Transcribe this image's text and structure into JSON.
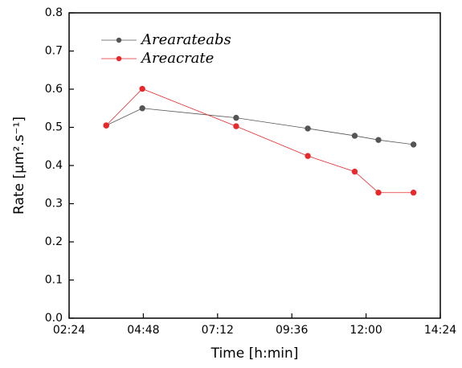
{
  "chart_data": {
    "type": "line",
    "xlabel": "Time [h:min]",
    "ylabel": "Rate [µm².s⁻¹]",
    "x": [
      216,
      286,
      468,
      607,
      698,
      744,
      812
    ],
    "series": [
      {
        "name": "Arearateabs",
        "color": "#555555",
        "values": [
          0.505,
          0.55,
          0.525,
          0.497,
          0.478,
          0.467,
          0.455
        ]
      },
      {
        "name": "Areacrate",
        "color": "#e8292b",
        "values": [
          0.505,
          0.601,
          0.503,
          0.425,
          0.384,
          0.329,
          0.329
        ]
      }
    ],
    "xlim": [
      144,
      864
    ],
    "xticks": [
      {
        "value": 144,
        "label": "02:24"
      },
      {
        "value": 288,
        "label": "04:48"
      },
      {
        "value": 432,
        "label": "07:12"
      },
      {
        "value": 576,
        "label": "09:36"
      },
      {
        "value": 720,
        "label": "12:00"
      },
      {
        "value": 864,
        "label": "14:24"
      }
    ],
    "ylim": [
      0,
      0.8
    ],
    "yticks": [
      {
        "value": 0,
        "label": "0.0"
      },
      0.1,
      0.2,
      0.3,
      0.4,
      0.5,
      0.6,
      0.7,
      0.8
    ],
    "legend": "upper-left"
  }
}
